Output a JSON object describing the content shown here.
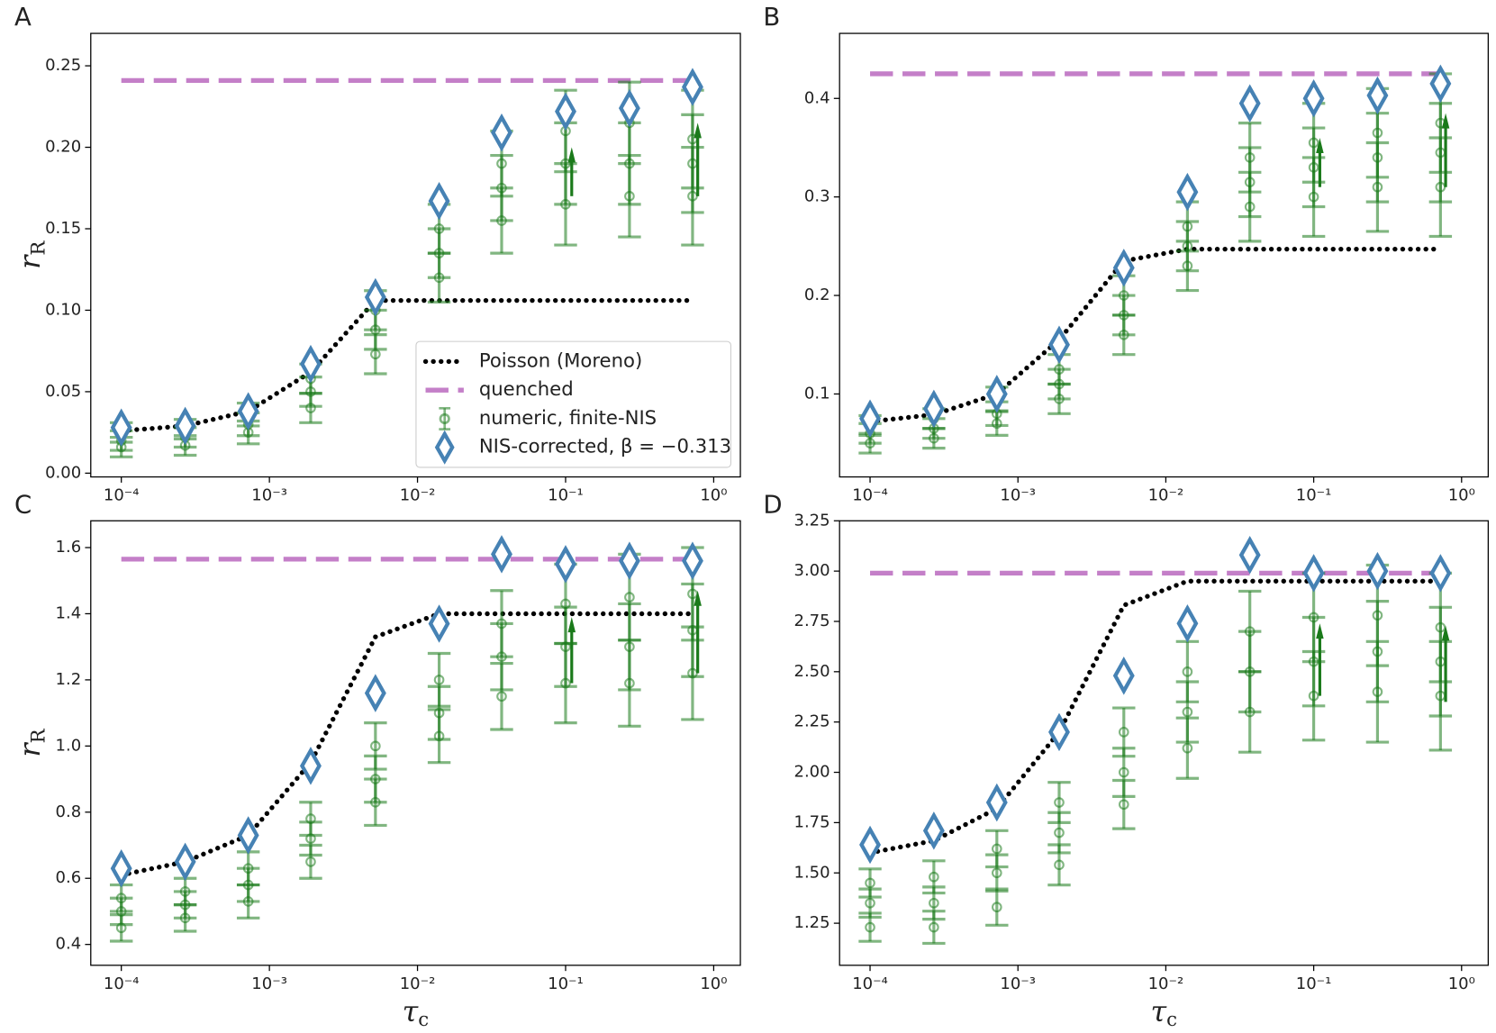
{
  "chart_data": [
    {
      "type": "scatter",
      "label": "A",
      "xscale": "log",
      "ylabel": {
        "main": "r",
        "sub": "R"
      },
      "xlim": [
        6.22e-05,
        1.514
      ],
      "ylim": [
        -0.0023,
        0.2699
      ],
      "xticks": [
        {
          "value": 0.0001,
          "label": "10⁻⁴"
        },
        {
          "value": 0.001,
          "label": "10⁻³"
        },
        {
          "value": 0.01,
          "label": "10⁻²"
        },
        {
          "value": 0.1,
          "label": "10⁻¹"
        },
        {
          "value": 1,
          "label": "10⁰"
        }
      ],
      "yticks": [
        {
          "value": 0,
          "label": "0.00"
        },
        0.05,
        {
          "value": 0.1,
          "label": "0.10"
        },
        0.15,
        {
          "value": 0.2,
          "label": "0.20"
        },
        0.25
      ],
      "x": [
        0.0001,
        0.00027,
        0.00072,
        0.0019,
        0.0052,
        0.014,
        0.037,
        0.1,
        0.27,
        0.72
      ],
      "legend": "lower right",
      "series": [
        {
          "name": "Poisson (Moreno)",
          "color": "#000000",
          "linestyle": "dotted",
          "values": [
            0.026,
            0.029,
            0.038,
            0.062,
            0.106,
            0.106,
            0.106,
            0.106,
            0.106,
            0.106
          ]
        },
        {
          "name": "quenched",
          "color": "#c47fc8",
          "linestyle": "dashed",
          "values": [
            0.241,
            0.241,
            0.241,
            0.241,
            0.241,
            0.241,
            0.241,
            0.241,
            0.241,
            0.241
          ]
        },
        {
          "name": "numeric, finite-NIS",
          "color": "#1a7a1a",
          "marker": "circle",
          "values": [
            [
              0.016,
              0.02,
              0.025
            ],
            [
              0.017,
              0.022,
              0.027
            ],
            [
              0.025,
              0.03,
              0.036
            ],
            [
              0.04,
              0.05,
              0.058
            ],
            [
              0.073,
              0.088,
              0.1
            ],
            [
              0.12,
              0.135,
              0.15
            ],
            [
              0.155,
              0.175,
              0.19
            ],
            [
              0.165,
              0.19,
              0.21
            ],
            [
              0.17,
              0.19,
              0.215
            ],
            [
              0.17,
              0.19,
              0.205
            ]
          ],
          "errors": [
            0.006,
            0.006,
            0.007,
            0.009,
            0.012,
            0.015,
            0.02,
            0.025,
            0.025,
            0.03
          ]
        },
        {
          "name": "NIS-corrected, β = −0.313",
          "color": "#4682b4",
          "marker": "diamond",
          "values": [
            0.028,
            0.029,
            0.038,
            0.067,
            0.108,
            0.167,
            0.209,
            0.222,
            0.224,
            0.237
          ]
        }
      ],
      "arrows": [
        {
          "x": 0.11,
          "from": 0.17,
          "to": 0.2
        },
        {
          "x": 0.78,
          "from": 0.17,
          "to": 0.215
        }
      ]
    },
    {
      "type": "scatter",
      "label": "B",
      "xscale": "log",
      "xlim": [
        6.22e-05,
        1.514
      ],
      "ylim": [
        0.0158,
        0.466
      ],
      "xticks": [
        {
          "value": 0.0001,
          "label": "10⁻⁴"
        },
        {
          "value": 0.001,
          "label": "10⁻³"
        },
        {
          "value": 0.01,
          "label": "10⁻²"
        },
        {
          "value": 0.1,
          "label": "10⁻¹"
        },
        {
          "value": 1,
          "label": "10⁰"
        }
      ],
      "yticks": [
        0.1,
        0.2,
        0.3,
        0.4
      ],
      "x": [
        0.0001,
        0.00027,
        0.00072,
        0.0019,
        0.0052,
        0.014,
        0.037,
        0.1,
        0.27,
        0.72
      ],
      "series": [
        {
          "color": "#000000",
          "linestyle": "dotted",
          "values": [
            0.072,
            0.079,
            0.1,
            0.155,
            0.235,
            0.247,
            0.247,
            0.247,
            0.247,
            0.247
          ]
        },
        {
          "color": "#c47fc8",
          "linestyle": "dashed",
          "values": [
            0.425,
            0.425,
            0.425,
            0.425,
            0.425,
            0.425,
            0.425,
            0.425,
            0.425,
            0.425
          ]
        },
        {
          "color": "#1a7a1a",
          "marker": "circle",
          "values": [
            [
              0.05,
              0.06,
              0.068
            ],
            [
              0.055,
              0.065,
              0.075
            ],
            [
              0.07,
              0.08,
              0.095
            ],
            [
              0.095,
              0.11,
              0.125
            ],
            [
              0.16,
              0.18,
              0.2
            ],
            [
              0.23,
              0.25,
              0.27
            ],
            [
              0.29,
              0.315,
              0.34
            ],
            [
              0.3,
              0.33,
              0.355
            ],
            [
              0.31,
              0.34,
              0.365
            ],
            [
              0.31,
              0.345,
              0.375
            ]
          ],
          "errors": [
            0.01,
            0.01,
            0.012,
            0.015,
            0.02,
            0.025,
            0.035,
            0.04,
            0.045,
            0.05
          ]
        },
        {
          "color": "#4682b4",
          "marker": "diamond",
          "values": [
            0.075,
            0.085,
            0.1,
            0.15,
            0.228,
            0.305,
            0.395,
            0.4,
            0.403,
            0.415
          ]
        }
      ],
      "arrows": [
        {
          "x": 0.11,
          "from": 0.31,
          "to": 0.36
        },
        {
          "x": 0.78,
          "from": 0.31,
          "to": 0.385
        }
      ]
    },
    {
      "type": "scatter",
      "label": "C",
      "xscale": "log",
      "ylabel": {
        "main": "r",
        "sub": "R"
      },
      "xlabel": {
        "main": "τ",
        "sub": "c"
      },
      "xlim": [
        6.22e-05,
        1.514
      ],
      "ylim": [
        0.337,
        1.681
      ],
      "xticks": [
        {
          "value": 0.0001,
          "label": "10⁻⁴"
        },
        {
          "value": 0.001,
          "label": "10⁻³"
        },
        {
          "value": 0.01,
          "label": "10⁻²"
        },
        {
          "value": 0.1,
          "label": "10⁻¹"
        },
        {
          "value": 1,
          "label": "10⁰"
        }
      ],
      "yticks": [
        0.4,
        0.6,
        0.8,
        {
          "value": 1,
          "label": "1.0"
        },
        1.2,
        1.4,
        1.6
      ],
      "x": [
        0.0001,
        0.00027,
        0.00072,
        0.0019,
        0.0052,
        0.014,
        0.037,
        0.1,
        0.27,
        0.72
      ],
      "series": [
        {
          "color": "#000000",
          "linestyle": "dotted",
          "values": [
            0.61,
            0.65,
            0.73,
            0.95,
            1.33,
            1.4,
            1.4,
            1.4,
            1.4,
            1.4
          ]
        },
        {
          "color": "#c47fc8",
          "linestyle": "dashed",
          "values": [
            1.565,
            1.565,
            1.565,
            1.565,
            1.565,
            1.565,
            1.565,
            1.565,
            1.565,
            1.565
          ]
        },
        {
          "color": "#1a7a1a",
          "marker": "circle",
          "values": [
            [
              0.45,
              0.5,
              0.54
            ],
            [
              0.48,
              0.52,
              0.56
            ],
            [
              0.53,
              0.58,
              0.63
            ],
            [
              0.65,
              0.72,
              0.78
            ],
            [
              0.83,
              0.9,
              1.0
            ],
            [
              1.03,
              1.1,
              1.2
            ],
            [
              1.15,
              1.27,
              1.37
            ],
            [
              1.19,
              1.3,
              1.43
            ],
            [
              1.19,
              1.3,
              1.45
            ],
            [
              1.22,
              1.35,
              1.46
            ]
          ],
          "errors": [
            0.04,
            0.04,
            0.05,
            0.05,
            0.07,
            0.08,
            0.1,
            0.12,
            0.13,
            0.14
          ]
        },
        {
          "color": "#4682b4",
          "marker": "diamond",
          "values": [
            0.63,
            0.65,
            0.73,
            0.94,
            1.16,
            1.37,
            1.58,
            1.55,
            1.56,
            1.56
          ]
        }
      ],
      "arrows": [
        {
          "x": 0.11,
          "from": 1.19,
          "to": 1.39
        },
        {
          "x": 0.78,
          "from": 1.22,
          "to": 1.47
        }
      ]
    },
    {
      "type": "scatter",
      "label": "D",
      "xscale": "log",
      "xlabel": {
        "main": "τ",
        "sub": "c"
      },
      "xlim": [
        6.22e-05,
        1.514
      ],
      "ylim": [
        1.041,
        3.25
      ],
      "xticks": [
        {
          "value": 0.0001,
          "label": "10⁻⁴"
        },
        {
          "value": 0.001,
          "label": "10⁻³"
        },
        {
          "value": 0.01,
          "label": "10⁻²"
        },
        {
          "value": 0.1,
          "label": "10⁻¹"
        },
        {
          "value": 1,
          "label": "10⁰"
        }
      ],
      "yticks": [
        1.25,
        {
          "value": 1.5,
          "label": "1.50"
        },
        1.75,
        {
          "value": 2,
          "label": "2.00"
        },
        2.25,
        {
          "value": 2.5,
          "label": "2.50"
        },
        2.75,
        {
          "value": 3,
          "label": "3.00"
        },
        3.25
      ],
      "x": [
        0.0001,
        0.00027,
        0.00072,
        0.0019,
        0.0052,
        0.014,
        0.037,
        0.1,
        0.27,
        0.72
      ],
      "series": [
        {
          "color": "#000000",
          "linestyle": "dotted",
          "values": [
            1.6,
            1.66,
            1.82,
            2.2,
            2.83,
            2.95,
            2.95,
            2.95,
            2.95,
            2.95
          ]
        },
        {
          "color": "#c47fc8",
          "linestyle": "dashed",
          "values": [
            2.99,
            2.99,
            2.99,
            2.99,
            2.99,
            2.99,
            2.99,
            2.99,
            2.99,
            2.99
          ]
        },
        {
          "color": "#1a7a1a",
          "marker": "circle",
          "values": [
            [
              1.23,
              1.35,
              1.45
            ],
            [
              1.23,
              1.35,
              1.48
            ],
            [
              1.33,
              1.5,
              1.62
            ],
            [
              1.54,
              1.7,
              1.85
            ],
            [
              1.84,
              2.0,
              2.2
            ],
            [
              2.12,
              2.3,
              2.5
            ],
            [
              2.3,
              2.5,
              2.7
            ],
            [
              2.38,
              2.55,
              2.77
            ],
            [
              2.4,
              2.6,
              2.78
            ],
            [
              2.38,
              2.55,
              2.72
            ]
          ],
          "errors": [
            0.07,
            0.08,
            0.09,
            0.1,
            0.12,
            0.15,
            0.2,
            0.22,
            0.25,
            0.27
          ]
        },
        {
          "color": "#4682b4",
          "marker": "diamond",
          "values": [
            1.64,
            1.71,
            1.85,
            2.2,
            2.48,
            2.74,
            3.08,
            2.99,
            3.0,
            2.99
          ]
        }
      ],
      "arrows": [
        {
          "x": 0.11,
          "from": 2.38,
          "to": 2.74
        },
        {
          "x": 0.78,
          "from": 2.35,
          "to": 2.73
        }
      ]
    }
  ]
}
